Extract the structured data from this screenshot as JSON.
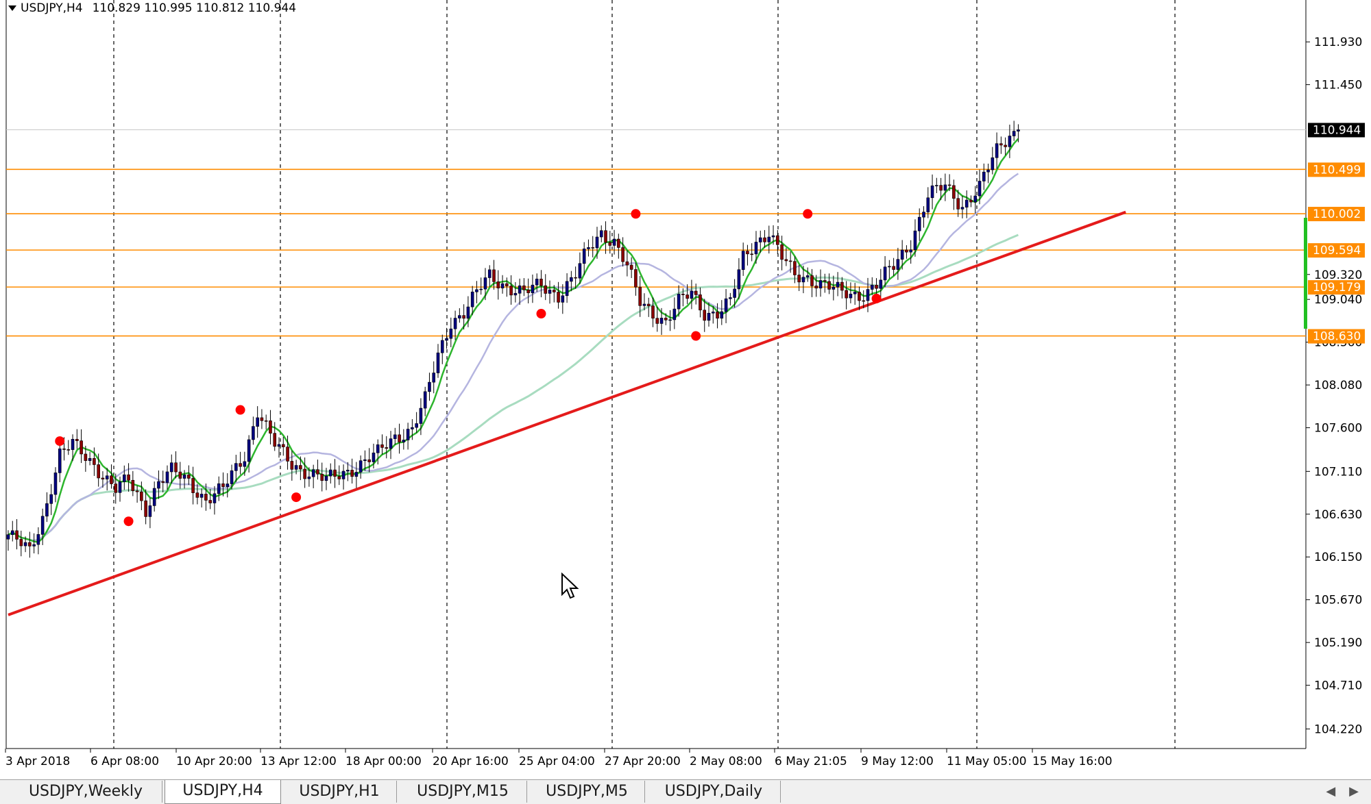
{
  "header": {
    "symbol_label": "USDJPY,H4",
    "ohlc": "110.829 110.995 110.812 110.944"
  },
  "tabs": [
    {
      "label": "USDJPY,Weekly",
      "active": false
    },
    {
      "label": "USDJPY,H4",
      "active": true
    },
    {
      "label": "USDJPY,H1",
      "active": false
    },
    {
      "label": "USDJPY,M15",
      "active": false
    },
    {
      "label": "USDJPY,M5",
      "active": false
    },
    {
      "label": "USDJPY,Daily",
      "active": false
    }
  ],
  "tab_scroll": {
    "left": "◀",
    "right": "▶"
  },
  "colors": {
    "bull": "#000080",
    "bear": "#8b0000",
    "fast_ma": "#2db52d",
    "mid_ma": "#b5b5e0",
    "slow_ma": "#a8dcc0",
    "trendline": "#e41b1b",
    "level_line": "#ff8c00",
    "level_label_bg": "#ff8c00",
    "current_price_bg": "#000000",
    "swing_marker": "#ff0000"
  },
  "chart_data": {
    "type": "candlestick",
    "symbol": "USDJPY",
    "timeframe": "H4",
    "ylim": [
      104.0,
      112.4
    ],
    "y_ticks": [
      "111.930",
      "111.450",
      "110.944",
      "110.499",
      "110.002",
      "109.594",
      "109.320",
      "109.179",
      "109.040",
      "108.630",
      "108.560",
      "108.080",
      "107.600",
      "107.110",
      "106.630",
      "106.150",
      "105.670",
      "105.190",
      "104.710",
      "104.220"
    ],
    "axis_ticks": [
      111.93,
      111.45,
      109.32,
      109.04,
      108.56,
      108.08,
      107.6,
      107.11,
      106.63,
      106.15,
      105.67,
      105.19,
      104.71,
      104.22
    ],
    "x_tick_labels": [
      "3 Apr 2018",
      "6 Apr 08:00",
      "10 Apr 20:00",
      "13 Apr 12:00",
      "18 Apr 00:00",
      "20 Apr 16:00",
      "25 Apr 04:00",
      "27 Apr 20:00",
      "2 May 08:00",
      "6 May 21:05",
      "9 May 12:00",
      "11 May 05:00",
      "15 May 16:00"
    ],
    "price_levels": [
      {
        "value": 110.499,
        "label": "110.499"
      },
      {
        "value": 110.002,
        "label": "110.002"
      },
      {
        "value": 109.594,
        "label": "109.594"
      },
      {
        "value": 109.179,
        "label": "109.179"
      },
      {
        "value": 108.63,
        "label": "108.630"
      }
    ],
    "current_price": {
      "value": 110.944,
      "label": "110.944"
    },
    "trendline": {
      "start": {
        "bar": 0,
        "price": 105.5
      },
      "end": {
        "bar": 260,
        "price": 110.02
      }
    },
    "close_path": [
      [
        0,
        106.4
      ],
      [
        5,
        106.2
      ],
      [
        8,
        106.6
      ],
      [
        12,
        107.3
      ],
      [
        15,
        107.4
      ],
      [
        20,
        107.2
      ],
      [
        25,
        106.9
      ],
      [
        28,
        107.0
      ],
      [
        32,
        106.7
      ],
      [
        35,
        107.0
      ],
      [
        38,
        107.1
      ],
      [
        42,
        107.0
      ],
      [
        46,
        106.8
      ],
      [
        50,
        106.9
      ],
      [
        55,
        107.3
      ],
      [
        58,
        107.8
      ],
      [
        62,
        107.4
      ],
      [
        66,
        107.2
      ],
      [
        70,
        107.1
      ],
      [
        74,
        107.0
      ],
      [
        78,
        107.1
      ],
      [
        82,
        107.2
      ],
      [
        86,
        107.3
      ],
      [
        90,
        107.5
      ],
      [
        94,
        107.6
      ],
      [
        97,
        107.9
      ],
      [
        100,
        108.4
      ],
      [
        103,
        108.8
      ],
      [
        106,
        108.9
      ],
      [
        109,
        109.1
      ],
      [
        112,
        109.3
      ],
      [
        116,
        109.2
      ],
      [
        120,
        109.1
      ],
      [
        124,
        109.2
      ],
      [
        128,
        109.1
      ],
      [
        132,
        109.3
      ],
      [
        135,
        109.6
      ],
      [
        138,
        109.8
      ],
      [
        141,
        109.7
      ],
      [
        144,
        109.4
      ],
      [
        147,
        109.0
      ],
      [
        150,
        108.9
      ],
      [
        153,
        108.8
      ],
      [
        156,
        109.0
      ],
      [
        159,
        109.1
      ],
      [
        162,
        108.9
      ],
      [
        165,
        108.9
      ],
      [
        168,
        109.0
      ],
      [
        171,
        109.5
      ],
      [
        174,
        109.7
      ],
      [
        177,
        109.8
      ],
      [
        180,
        109.5
      ],
      [
        183,
        109.3
      ],
      [
        186,
        109.3
      ],
      [
        190,
        109.2
      ],
      [
        194,
        109.1
      ],
      [
        198,
        109.1
      ],
      [
        202,
        109.2
      ],
      [
        206,
        109.4
      ],
      [
        210,
        109.7
      ],
      [
        214,
        110.2
      ],
      [
        218,
        110.3
      ],
      [
        222,
        110.1
      ],
      [
        226,
        110.3
      ],
      [
        230,
        110.7
      ],
      [
        233,
        110.9
      ],
      [
        235,
        110.944
      ]
    ],
    "swing_markers": [
      {
        "bar": 12,
        "price": 107.45
      },
      {
        "bar": 28,
        "price": 106.55
      },
      {
        "bar": 54,
        "price": 107.8
      },
      {
        "bar": 67,
        "price": 106.82
      },
      {
        "bar": 124,
        "price": 108.88
      },
      {
        "bar": 146,
        "price": 110.0
      },
      {
        "bar": 160,
        "price": 108.63
      },
      {
        "bar": 186,
        "price": 110.0
      },
      {
        "bar": 202,
        "price": 109.05
      }
    ]
  }
}
